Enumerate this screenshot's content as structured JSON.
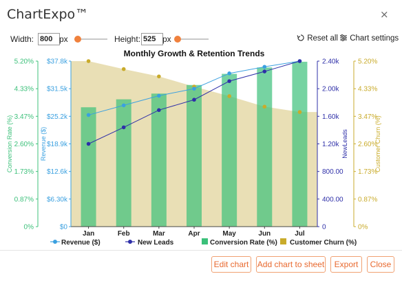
{
  "app": {
    "title": "ChartExpo™",
    "close_glyph": "×"
  },
  "toolbar": {
    "width_label": "Width:",
    "width_value": "800",
    "width_unit": "px",
    "height_label": "Height:",
    "height_value": "525",
    "height_unit": "px",
    "reset_label": "Reset all",
    "settings_label": "Chart settings"
  },
  "footer": {
    "edit_chart": "Edit chart",
    "add_chart_to_sheet": "Add chart to sheet",
    "export": "Export",
    "close": "Close"
  },
  "colors": {
    "conversion": "#3cc07a",
    "revenue": "#3aa0e0",
    "leads": "#2e2fa8",
    "churn": "#c9ab2b",
    "churn_area": "#e9dfb5"
  },
  "chart_data": {
    "type": "bar",
    "title": "Monthly Growth & Retention Trends",
    "categories": [
      "Jan",
      "Feb",
      "Mar",
      "Apr",
      "May",
      "Jun",
      "Jul"
    ],
    "series": [
      {
        "name": "Revenue ($)",
        "type": "line",
        "axis": "revenue",
        "values": [
          25500,
          27700,
          29900,
          31500,
          35000,
          36500,
          37800
        ]
      },
      {
        "name": "New Leads",
        "type": "line",
        "axis": "leads",
        "values": [
          1200,
          1440,
          1690,
          1840,
          2110,
          2250,
          2400
        ]
      },
      {
        "name": "Conversion Rate (%)",
        "type": "bar",
        "axis": "conversion",
        "values": [
          3.75,
          4.0,
          4.18,
          4.45,
          4.8,
          5.0,
          5.18
        ]
      },
      {
        "name": "Customer Churn (%)",
        "type": "area",
        "axis": "churn",
        "values": [
          5.2,
          4.95,
          4.72,
          4.4,
          4.1,
          3.77,
          3.6
        ]
      }
    ],
    "axes": {
      "conversion": {
        "label": "Conversion Rate (%)",
        "ylim": [
          0,
          5.2
        ],
        "ticks": [
          "0%",
          "0.87%",
          "1.73%",
          "2.60%",
          "3.47%",
          "4.33%",
          "5.20%"
        ]
      },
      "revenue": {
        "label": "Revenue ($)",
        "ylim": [
          0,
          37800
        ],
        "ticks": [
          "$0",
          "$6.30k",
          "$12.6k",
          "$18.9k",
          "$25.2k",
          "$31.5k",
          "$37.8k"
        ]
      },
      "leads": {
        "label": "NewLeads",
        "ylim": [
          0,
          2400
        ],
        "ticks": [
          "0",
          "400.00",
          "800.00",
          "1.20k",
          "1.60k",
          "2.00k",
          "2.40k"
        ]
      },
      "churn": {
        "label": "Customer Churn (%)",
        "ylim": [
          0,
          5.2
        ],
        "ticks": [
          "0%",
          "0.87%",
          "1.73%",
          "2.60%",
          "3.47%",
          "4.33%",
          "5.20%"
        ]
      }
    },
    "legend": [
      "Revenue ($)",
      "New Leads",
      "Conversion Rate (%)",
      "Customer Churn (%)"
    ],
    "legend_position": "bottom"
  }
}
